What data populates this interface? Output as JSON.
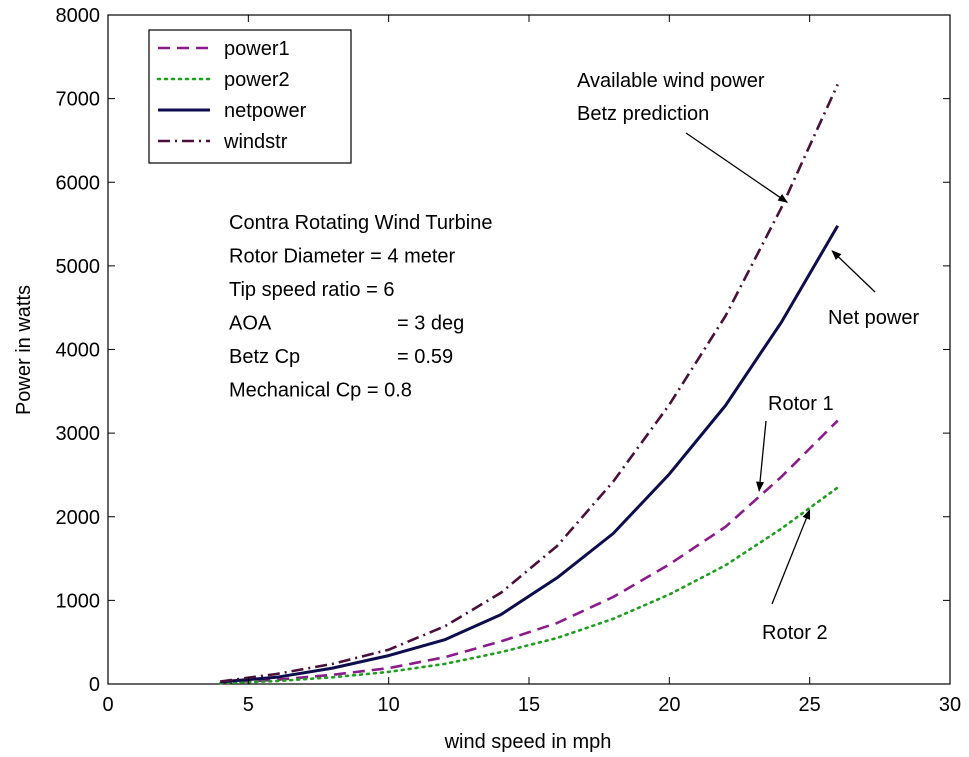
{
  "chart_data": {
    "type": "line",
    "xlabel": "wind speed in mph",
    "ylabel": "Power in watts",
    "xlim": [
      0,
      30
    ],
    "ylim": [
      0,
      8000
    ],
    "xticks": [
      0,
      5,
      10,
      15,
      20,
      25,
      30
    ],
    "yticks": [
      0,
      1000,
      2000,
      3000,
      4000,
      5000,
      6000,
      7000,
      8000
    ],
    "grid": false,
    "legend_position": "top-left",
    "x": [
      4,
      6,
      8,
      10,
      12,
      14,
      16,
      18,
      20,
      22,
      24,
      26
    ],
    "series": [
      {
        "name": "power1",
        "style": "dashed",
        "color": "#8b1a8b",
        "values": [
          15,
          50,
          110,
          190,
          320,
          510,
          730,
          1040,
          1430,
          1880,
          2480,
          3150
        ]
      },
      {
        "name": "power2",
        "style": "dotted",
        "color": "#1f9e1f",
        "values": [
          10,
          35,
          80,
          145,
          240,
          380,
          550,
          780,
          1070,
          1420,
          1860,
          2350
        ]
      },
      {
        "name": "netpower",
        "style": "solid",
        "color": "#0d0d4d",
        "values": [
          25,
          80,
          190,
          340,
          530,
          830,
          1270,
          1800,
          2510,
          3330,
          4330,
          5480
        ]
      },
      {
        "name": "windstr",
        "style": "dashdot",
        "color": "#4a0f3a",
        "values": [
          30,
          120,
          240,
          410,
          690,
          1090,
          1650,
          2420,
          3340,
          4400,
          5700,
          7170
        ]
      }
    ],
    "text_box": [
      {
        "label": "Contra Rotating Wind Turbine",
        "value": ""
      },
      {
        "label": "Rotor Diameter = 4 meter",
        "value": ""
      },
      {
        "label": "Tip speed ratio = 6",
        "value": ""
      },
      {
        "label": "AOA",
        "value": "= 3 deg"
      },
      {
        "label": "Betz Cp",
        "value": "= 0.59"
      },
      {
        "label": "Mechanical Cp = 0.8",
        "value": ""
      }
    ],
    "annotations": [
      {
        "lines": [
          "Available wind power",
          "Betz prediction"
        ],
        "arrow_to": [
          24.2,
          5760
        ]
      },
      {
        "lines": [
          "Net power"
        ],
        "arrow_to": [
          25.8,
          5180
        ]
      },
      {
        "lines": [
          "Rotor 1"
        ],
        "arrow_to": [
          23.2,
          2310
        ]
      },
      {
        "lines": [
          "Rotor 2"
        ],
        "arrow_to": [
          25.0,
          2080
        ]
      }
    ]
  }
}
